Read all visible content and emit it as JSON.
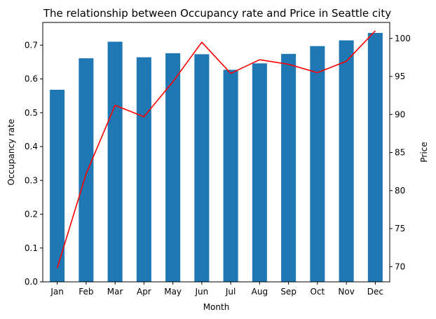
{
  "chart_data": {
    "type": "bar",
    "title": "The relationship between Occupancy rate and Price in Seattle city",
    "xlabel": "Month",
    "ylabel": "Occupancy rate",
    "y2label": "Price",
    "categories": [
      "Jan",
      "Feb",
      "Mar",
      "Apr",
      "May",
      "Jun",
      "Jul",
      "Aug",
      "Sep",
      "Oct",
      "Nov",
      "Dec"
    ],
    "ylim": [
      0,
      0.767
    ],
    "y2lim": [
      68.0,
      102.1
    ],
    "yticks": [
      "0.0",
      "0.1",
      "0.2",
      "0.3",
      "0.4",
      "0.5",
      "0.6",
      "0.7"
    ],
    "y2ticks": [
      "70",
      "75",
      "80",
      "85",
      "90",
      "95",
      "100"
    ],
    "grid": false,
    "series": [
      {
        "kind": "bar",
        "axis": "left",
        "color": "#1f77b4",
        "values": [
          0.568,
          0.661,
          0.71,
          0.664,
          0.676,
          0.673,
          0.627,
          0.646,
          0.674,
          0.697,
          0.714,
          0.736
        ]
      },
      {
        "kind": "line",
        "axis": "right",
        "color": "#ff0000",
        "values": [
          69.8,
          82.2,
          91.2,
          89.7,
          94.3,
          99.5,
          95.4,
          97.2,
          96.6,
          95.5,
          97.0,
          101.0
        ]
      }
    ]
  }
}
